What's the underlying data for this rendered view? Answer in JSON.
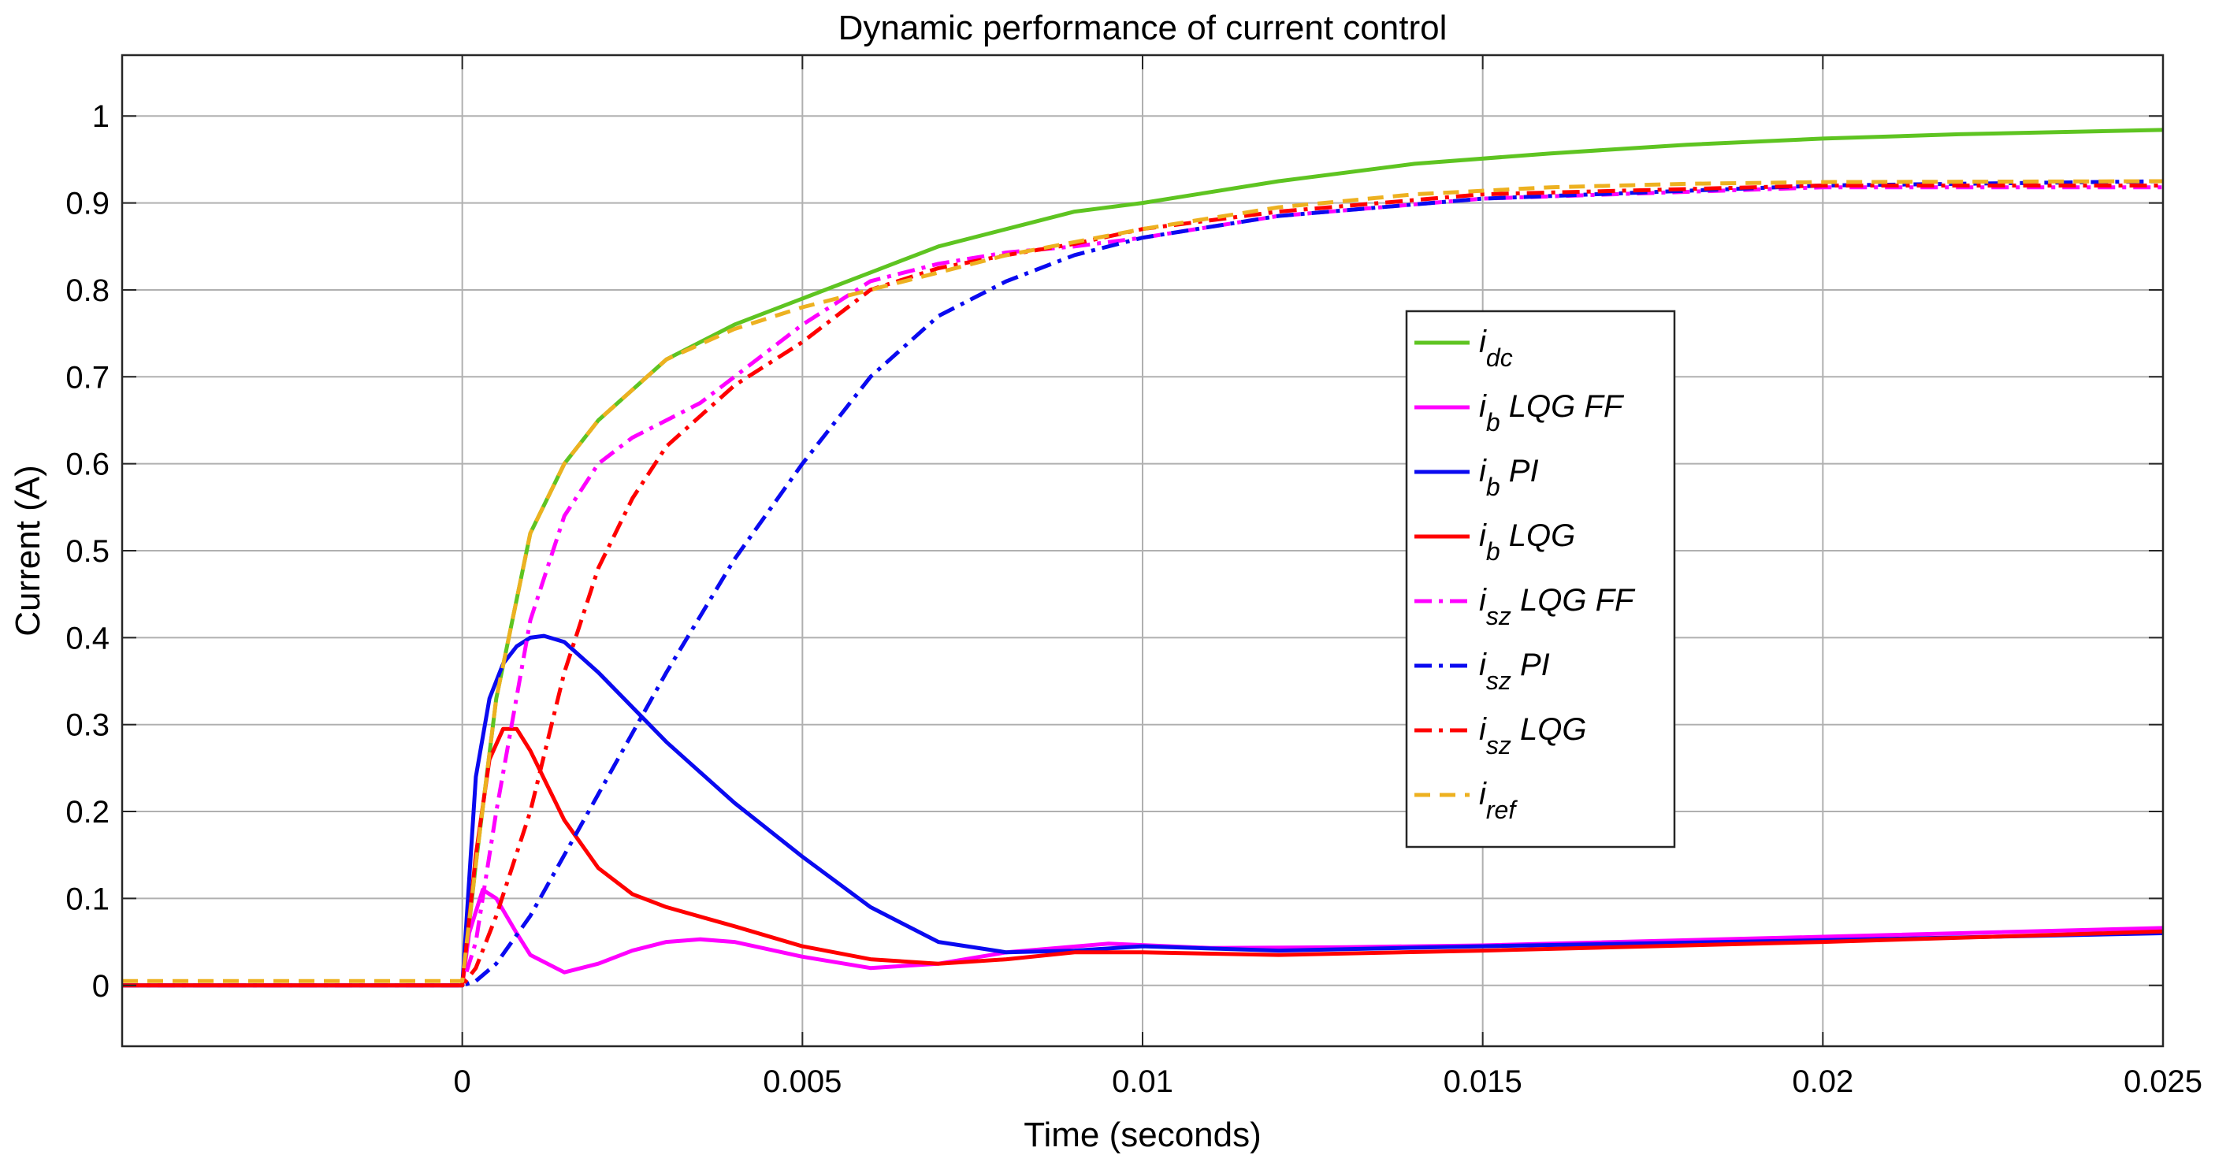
{
  "chart_data": {
    "type": "line",
    "title": "Dynamic performance of current control",
    "xlabel": "Time (seconds)",
    "ylabel": "Current (A)",
    "xlim": [
      -0.005,
      0.025
    ],
    "ylim": [
      -0.07,
      1.07
    ],
    "xticks": [
      0,
      0.005,
      0.01,
      0.015,
      0.02,
      0.025
    ],
    "xtick_labels": [
      "0",
      "0.005",
      "0.01",
      "0.015",
      "0.02",
      "0.025"
    ],
    "yticks": [
      0,
      0.1,
      0.2,
      0.3,
      0.4,
      0.5,
      0.6,
      0.7,
      0.8,
      0.9,
      1
    ],
    "ytick_labels": [
      "0",
      "0.1",
      "0.2",
      "0.3",
      "0.4",
      "0.5",
      "0.6",
      "0.7",
      "0.8",
      "0.9",
      "1"
    ],
    "grid": true,
    "legend_position": "center-right",
    "series": [
      {
        "name": "i_dc",
        "label_main": "i",
        "label_sub": "dc",
        "label_rest": "",
        "color": "#5ec421",
        "dash": "solid",
        "x": [
          -0.005,
          0,
          0.0002,
          0.0005,
          0.001,
          0.0015,
          0.002,
          0.003,
          0.004,
          0.005,
          0.006,
          0.007,
          0.008,
          0.009,
          0.01,
          0.012,
          0.014,
          0.016,
          0.018,
          0.02,
          0.022,
          0.025
        ],
        "y": [
          0,
          0,
          0.14,
          0.33,
          0.52,
          0.6,
          0.65,
          0.72,
          0.76,
          0.79,
          0.82,
          0.85,
          0.87,
          0.89,
          0.9,
          0.925,
          0.945,
          0.957,
          0.967,
          0.974,
          0.979,
          0.984
        ]
      },
      {
        "name": "i_b LQG FF",
        "label_main": "i",
        "label_sub": "b",
        "label_rest": " LQG FF",
        "color": "#ff00ff",
        "dash": "solid",
        "x": [
          -0.005,
          0,
          0.0001,
          0.0003,
          0.0005,
          0.0008,
          0.001,
          0.0015,
          0.002,
          0.0025,
          0.003,
          0.0035,
          0.004,
          0.005,
          0.006,
          0.007,
          0.008,
          0.0095,
          0.011,
          0.013,
          0.015,
          0.02,
          0.025
        ],
        "y": [
          0,
          0,
          0.06,
          0.11,
          0.1,
          0.06,
          0.035,
          0.015,
          0.025,
          0.04,
          0.05,
          0.053,
          0.05,
          0.033,
          0.02,
          0.025,
          0.038,
          0.048,
          0.043,
          0.044,
          0.046,
          0.056,
          0.066
        ]
      },
      {
        "name": "i_b PI",
        "label_main": "i",
        "label_sub": "b",
        "label_rest": " PI",
        "color": "#0a0af0",
        "dash": "solid",
        "x": [
          -0.005,
          0,
          0.0002,
          0.0004,
          0.0006,
          0.0008,
          0.001,
          0.0012,
          0.0015,
          0.002,
          0.0025,
          0.003,
          0.0035,
          0.004,
          0.005,
          0.006,
          0.007,
          0.008,
          0.009,
          0.01,
          0.012,
          0.015,
          0.02,
          0.025
        ],
        "y": [
          0,
          0,
          0.24,
          0.33,
          0.37,
          0.39,
          0.4,
          0.402,
          0.395,
          0.36,
          0.32,
          0.28,
          0.245,
          0.21,
          0.148,
          0.09,
          0.05,
          0.038,
          0.04,
          0.045,
          0.04,
          0.045,
          0.052,
          0.06
        ]
      },
      {
        "name": "i_b LQG",
        "label_main": "i",
        "label_sub": "b",
        "label_rest": " LQG",
        "color": "#ff0000",
        "dash": "solid",
        "x": [
          -0.005,
          0,
          0.0002,
          0.0004,
          0.0006,
          0.0008,
          0.001,
          0.0015,
          0.002,
          0.0025,
          0.003,
          0.004,
          0.005,
          0.006,
          0.007,
          0.008,
          0.009,
          0.01,
          0.012,
          0.015,
          0.02,
          0.025
        ],
        "y": [
          0,
          0,
          0.15,
          0.26,
          0.295,
          0.295,
          0.27,
          0.19,
          0.135,
          0.105,
          0.09,
          0.068,
          0.045,
          0.03,
          0.025,
          0.03,
          0.038,
          0.038,
          0.035,
          0.04,
          0.05,
          0.062
        ]
      },
      {
        "name": "i_sz LQG FF",
        "label_main": "i",
        "label_sub": "sz",
        "label_rest": " LQG FF",
        "color": "#ff00ff",
        "dash": "dashdot",
        "x": [
          -0.005,
          0,
          0.0002,
          0.0005,
          0.001,
          0.0015,
          0.002,
          0.0025,
          0.003,
          0.0035,
          0.004,
          0.005,
          0.006,
          0.007,
          0.008,
          0.009,
          0.01,
          0.012,
          0.015,
          0.02,
          0.025
        ],
        "y": [
          0,
          0,
          0.05,
          0.2,
          0.42,
          0.54,
          0.6,
          0.63,
          0.65,
          0.67,
          0.7,
          0.76,
          0.81,
          0.83,
          0.843,
          0.85,
          0.86,
          0.885,
          0.905,
          0.918,
          0.918
        ]
      },
      {
        "name": "i_sz PI",
        "label_main": "i",
        "label_sub": "sz",
        "label_rest": " PI",
        "color": "#0a0af0",
        "dash": "dashdot",
        "x": [
          -0.005,
          0,
          0.0002,
          0.0005,
          0.001,
          0.0015,
          0.002,
          0.0025,
          0.003,
          0.004,
          0.005,
          0.006,
          0.007,
          0.008,
          0.009,
          0.01,
          0.012,
          0.015,
          0.02,
          0.025
        ],
        "y": [
          0,
          0,
          0.005,
          0.025,
          0.08,
          0.15,
          0.22,
          0.29,
          0.36,
          0.49,
          0.6,
          0.7,
          0.77,
          0.81,
          0.84,
          0.86,
          0.885,
          0.905,
          0.92,
          0.925
        ]
      },
      {
        "name": "i_sz LQG",
        "label_main": "i",
        "label_sub": "sz",
        "label_rest": " LQG",
        "color": "#ff0000",
        "dash": "dashdot",
        "x": [
          -0.005,
          0,
          0.0002,
          0.0005,
          0.001,
          0.0015,
          0.002,
          0.0025,
          0.003,
          0.004,
          0.005,
          0.006,
          0.007,
          0.008,
          0.009,
          0.01,
          0.012,
          0.015,
          0.02,
          0.025
        ],
        "y": [
          0,
          0,
          0.02,
          0.08,
          0.2,
          0.36,
          0.48,
          0.56,
          0.62,
          0.69,
          0.74,
          0.8,
          0.825,
          0.84,
          0.853,
          0.87,
          0.89,
          0.91,
          0.92,
          0.92
        ]
      },
      {
        "name": "i_ref",
        "label_main": "i",
        "label_sub": "ref",
        "label_rest": "",
        "color": "#edb120",
        "dash": "dashed",
        "x": [
          -0.005,
          0,
          0.0002,
          0.0005,
          0.001,
          0.0015,
          0.002,
          0.003,
          0.004,
          0.005,
          0.006,
          0.007,
          0.008,
          0.009,
          0.01,
          0.012,
          0.014,
          0.016,
          0.018,
          0.02,
          0.025
        ],
        "y": [
          0.005,
          0.005,
          0.14,
          0.33,
          0.52,
          0.6,
          0.65,
          0.72,
          0.755,
          0.78,
          0.8,
          0.82,
          0.84,
          0.855,
          0.87,
          0.895,
          0.91,
          0.918,
          0.922,
          0.924,
          0.925
        ]
      }
    ]
  }
}
